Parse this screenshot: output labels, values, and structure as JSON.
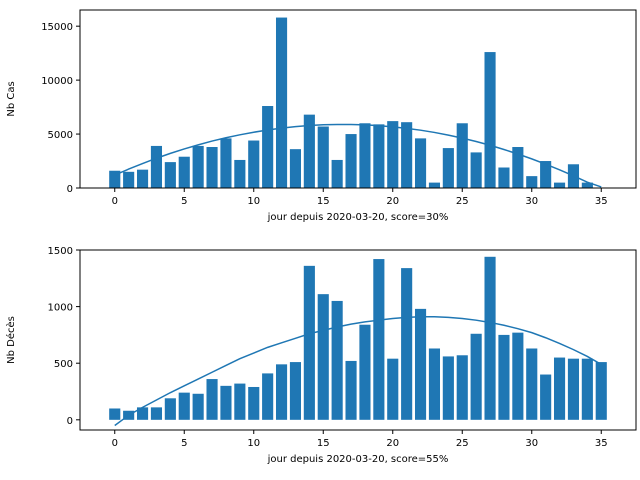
{
  "chart_data": [
    {
      "type": "bar",
      "xlabel": "jour depuis 2020-03-20, score=30%",
      "ylabel": "Nb Cas",
      "xlim": [
        -2.5,
        37.5
      ],
      "ylim": [
        0,
        16500
      ],
      "xticks": [
        0,
        5,
        10,
        15,
        20,
        25,
        30,
        35
      ],
      "yticks": [
        0,
        5000,
        10000,
        15000
      ],
      "color": "#1f77b4",
      "x": [
        0,
        1,
        2,
        3,
        4,
        5,
        6,
        7,
        8,
        9,
        10,
        11,
        12,
        13,
        14,
        15,
        16,
        17,
        18,
        19,
        20,
        21,
        22,
        23,
        24,
        25,
        26,
        27,
        28,
        29,
        30,
        31,
        32,
        33,
        34,
        35
      ],
      "values": [
        1600,
        1500,
        1700,
        3900,
        2400,
        2900,
        3900,
        3800,
        4600,
        2600,
        4400,
        7600,
        15800,
        3600,
        6800,
        5700,
        2600,
        5000,
        6000,
        5900,
        6200,
        6100,
        4600,
        500,
        3700,
        6000,
        3300,
        12600,
        1900,
        3800,
        1100,
        2500,
        500,
        2200,
        500,
        0
      ],
      "fit_curve": {
        "x": [
          0,
          1,
          2,
          3,
          4,
          5,
          6,
          7,
          8,
          9,
          10,
          11,
          12,
          13,
          14,
          15,
          16,
          17,
          18,
          19,
          20,
          21,
          22,
          23,
          24,
          25,
          26,
          27,
          28,
          29,
          30,
          31,
          32,
          33,
          34,
          35
        ],
        "y": [
          1200,
          1750,
          2270,
          2760,
          3210,
          3620,
          4000,
          4350,
          4660,
          4930,
          5170,
          5380,
          5550,
          5690,
          5790,
          5860,
          5890,
          5890,
          5850,
          5780,
          5670,
          5530,
          5360,
          5150,
          4900,
          4620,
          4310,
          3960,
          3570,
          3150,
          2700,
          2210,
          1690,
          1130,
          540,
          100
        ]
      }
    },
    {
      "type": "bar",
      "xlabel": "jour depuis 2020-03-20, score=55%",
      "ylabel": "Nb Décès",
      "xlim": [
        -2.5,
        37.5
      ],
      "ylim": [
        -90,
        1500
      ],
      "xticks": [
        0,
        5,
        10,
        15,
        20,
        25,
        30,
        35
      ],
      "yticks": [
        0,
        500,
        1000,
        1500
      ],
      "color": "#1f77b4",
      "x": [
        0,
        1,
        2,
        3,
        4,
        5,
        6,
        7,
        8,
        9,
        10,
        11,
        12,
        13,
        14,
        15,
        16,
        17,
        18,
        19,
        20,
        21,
        22,
        23,
        24,
        25,
        26,
        27,
        28,
        29,
        30,
        31,
        32,
        33,
        34,
        35
      ],
      "values": [
        100,
        80,
        110,
        110,
        190,
        240,
        230,
        360,
        300,
        320,
        290,
        410,
        490,
        510,
        1360,
        1110,
        1050,
        520,
        840,
        1420,
        540,
        1340,
        980,
        630,
        560,
        570,
        760,
        1440,
        750,
        770,
        630,
        400,
        550,
        540,
        540,
        510
      ],
      "fit_curve": {
        "x": [
          0,
          1,
          2,
          3,
          4,
          5,
          6,
          7,
          8,
          9,
          10,
          11,
          12,
          13,
          14,
          15,
          16,
          17,
          18,
          19,
          20,
          21,
          22,
          23,
          24,
          25,
          26,
          27,
          28,
          29,
          30,
          31,
          32,
          33,
          34,
          35
        ],
        "y": [
          -50,
          40,
          110,
          175,
          240,
          300,
          360,
          420,
          480,
          540,
          590,
          640,
          680,
          720,
          760,
          790,
          820,
          845,
          865,
          880,
          895,
          905,
          910,
          910,
          905,
          895,
          880,
          860,
          835,
          805,
          770,
          725,
          675,
          620,
          560,
          490
        ]
      }
    }
  ]
}
